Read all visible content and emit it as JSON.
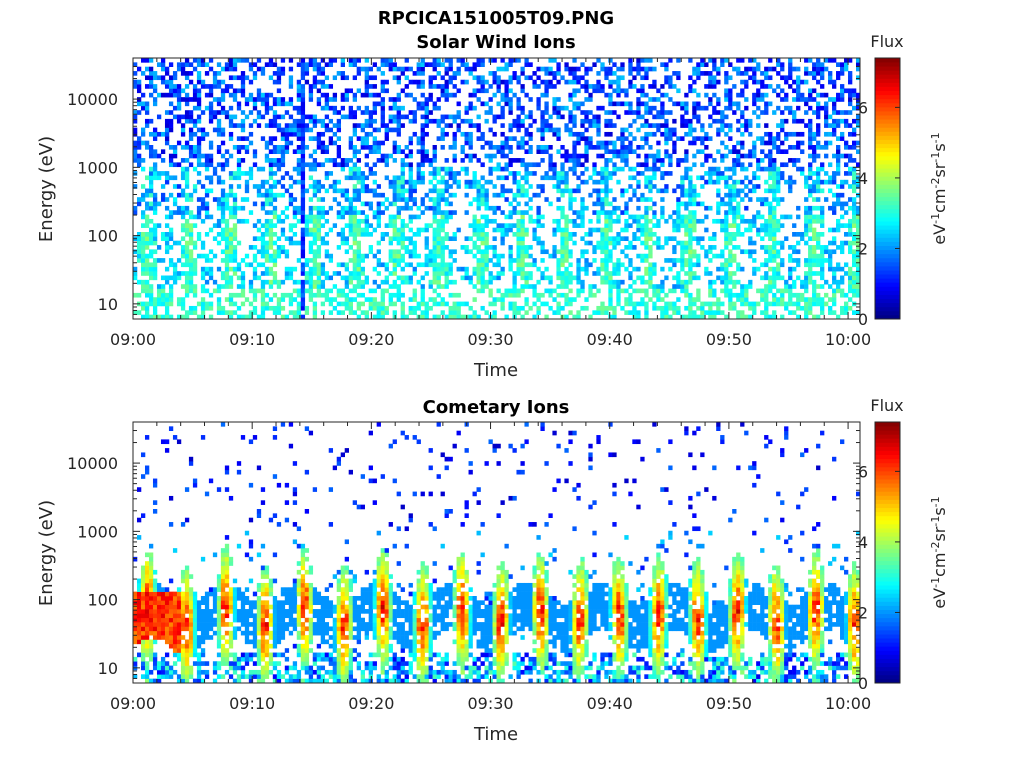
{
  "figure_title": "RPCICA151005T09.PNG",
  "chart_data": [
    {
      "type": "heatmap",
      "title": "Solar Wind Ions",
      "xlabel": "Time",
      "ylabel": "Energy (eV)",
      "x_range": [
        "09:00",
        "10:01"
      ],
      "x_ticks": [
        "09:00",
        "09:10",
        "09:20",
        "09:30",
        "09:40",
        "09:50",
        "10:00"
      ],
      "y_scale": "log",
      "y_range": [
        6,
        40000
      ],
      "y_ticks": [
        "10",
        "100",
        "1000",
        "10000"
      ],
      "colorbar": {
        "title": "Flux",
        "label": "eV-1cm-2sr-1s-1",
        "range": [
          0,
          7.4
        ],
        "ticks": [
          "0",
          "2",
          "4",
          "6"
        ],
        "colormap": "jet"
      },
      "description_values": {
        "background_flux_high_energy": 1.5,
        "low_energy_flux": 3.5,
        "pulse_period_min": 3.5
      }
    },
    {
      "type": "heatmap",
      "title": "Cometary Ions",
      "xlabel": "Time",
      "ylabel": "Energy (eV)",
      "x_range": [
        "09:00",
        "10:01"
      ],
      "x_ticks": [
        "09:00",
        "09:10",
        "09:20",
        "09:30",
        "09:40",
        "09:50",
        "10:00"
      ],
      "y_scale": "log",
      "y_range": [
        6,
        40000
      ],
      "y_ticks": [
        "10",
        "100",
        "1000",
        "10000"
      ],
      "colorbar": {
        "title": "Flux",
        "label": "eV-1cm-2sr-1s-1",
        "range": [
          0,
          7.4
        ],
        "ticks": [
          "0",
          "2",
          "4",
          "6"
        ],
        "colormap": "jet"
      },
      "description_values": {
        "peak_flux": 6.5,
        "peak_energy_eV": 60,
        "pulse_period_min": 3.3
      }
    }
  ]
}
